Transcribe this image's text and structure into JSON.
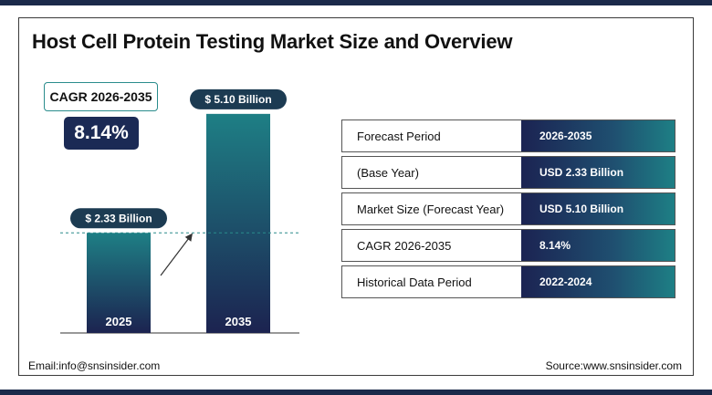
{
  "title": "Host Cell Protein Testing Market Size and Overview",
  "cagr_label": "CAGR 2026-2035",
  "cagr_value": "8.14%",
  "chart_data": {
    "type": "bar",
    "categories": [
      "2025",
      "2035"
    ],
    "values": [
      2.33,
      5.1
    ],
    "data_labels": [
      "$ 2.33 Billion",
      "$ 5.10 Billion"
    ],
    "ylim": [
      0,
      5.5
    ],
    "title": "",
    "xlabel": "",
    "ylabel": "",
    "colors": {
      "bar_top": "#1e7f85",
      "bar_bottom": "#1c2350",
      "label_bg": "#1c3b52",
      "dashed_line": "#2a8c8c"
    }
  },
  "table": {
    "rows": [
      {
        "label": "Forecast Period",
        "value": "2026-2035"
      },
      {
        "label": "(Base Year)",
        "value": "USD 2.33 Billion"
      },
      {
        "label": "Market Size (Forecast Year)",
        "value": "USD 5.10 Billion"
      },
      {
        "label": "CAGR 2026-2035",
        "value": "8.14%"
      },
      {
        "label": "Historical Data Period",
        "value": "2022-2024"
      }
    ]
  },
  "footer": {
    "email": "Email:info@snsinsider.com",
    "source": "Source:www.snsinsider.com"
  }
}
